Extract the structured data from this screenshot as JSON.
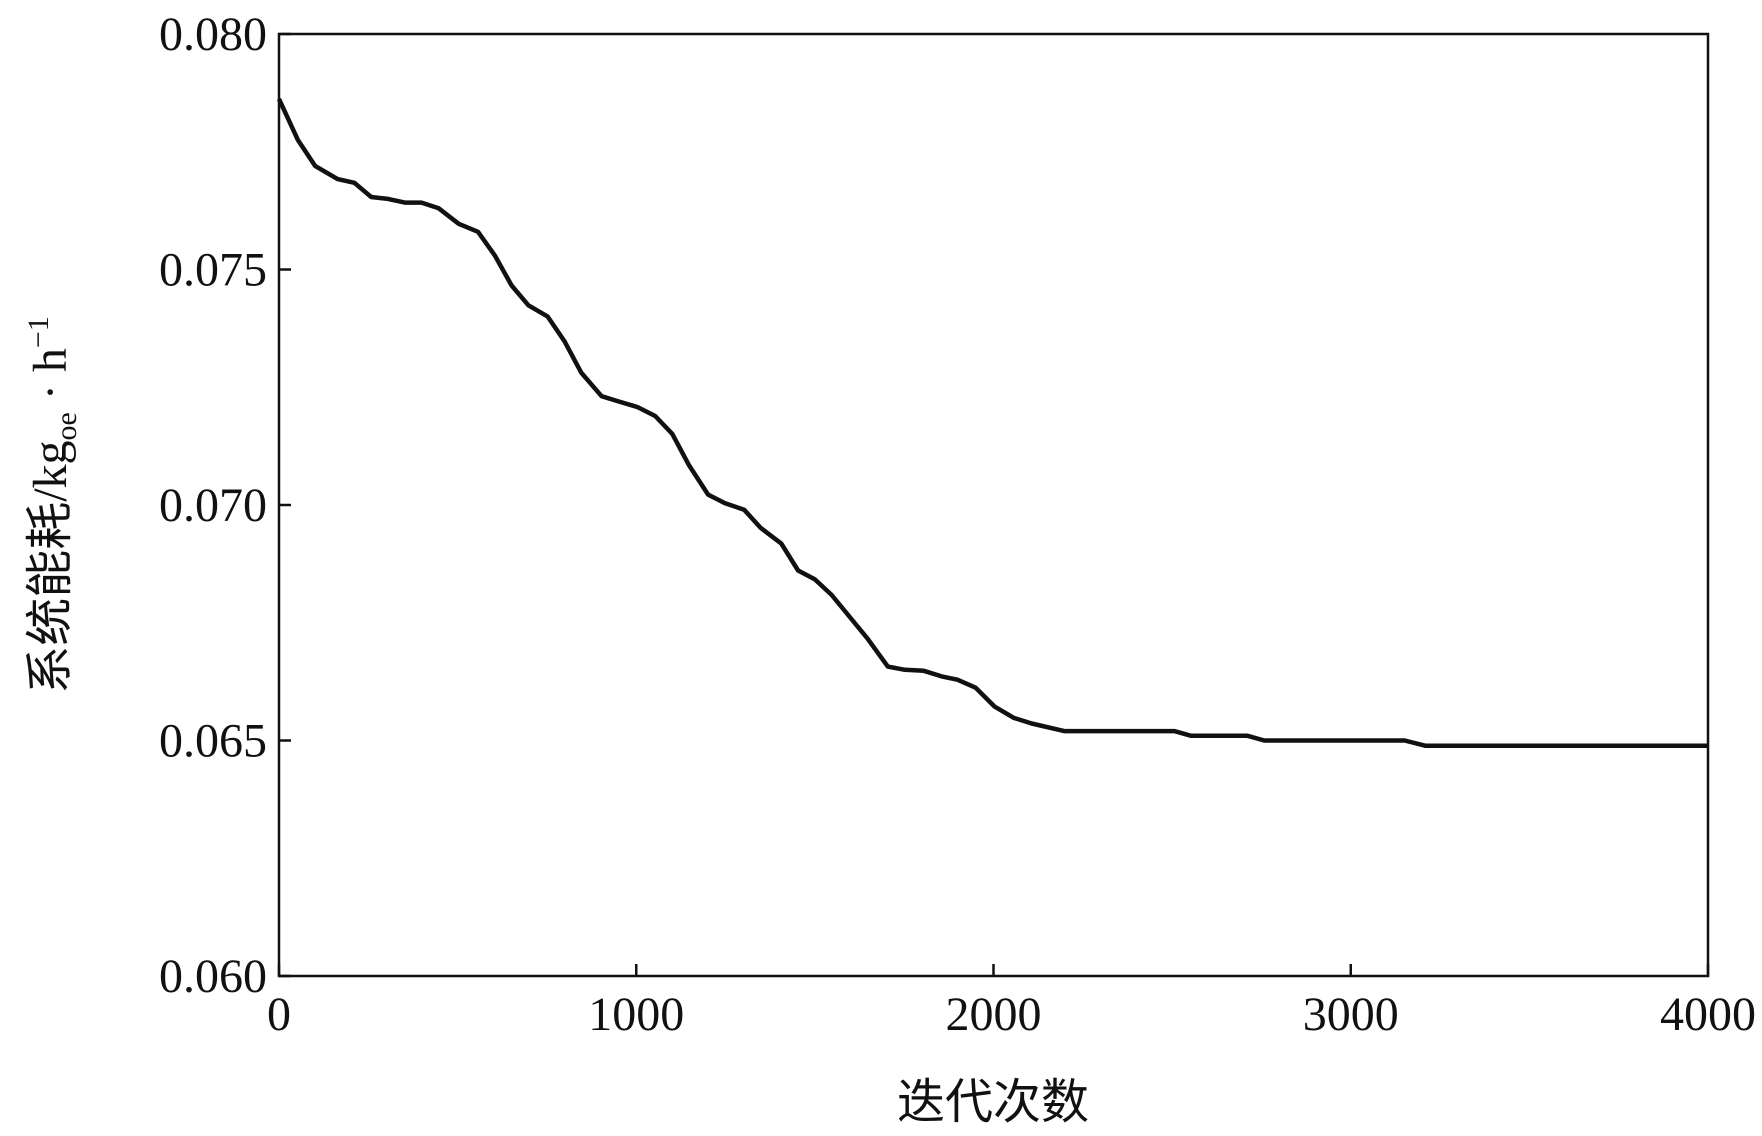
{
  "chart_data": {
    "type": "line",
    "xlabel": "迭代次数",
    "ylabel_parts": [
      "系统能耗/kg",
      "oe",
      " · h",
      "−1"
    ],
    "xlim": [
      0,
      4000
    ],
    "xticks": [
      0,
      1000,
      2000,
      3000,
      4000
    ],
    "ylim": [
      0.06,
      0.08
    ],
    "yticks": [
      {
        "value": 0.06,
        "label": "0.060"
      },
      {
        "value": 0.065,
        "label": "0.065"
      },
      {
        "value": 0.07,
        "label": "0.070"
      },
      {
        "value": 0.075,
        "label": "0.075"
      },
      {
        "value": 0.08,
        "label": "0.080"
      }
    ],
    "grid": false,
    "series": [
      {
        "color": "#111111",
        "x": [
          0,
          53,
          101,
          164,
          211,
          258,
          305,
          352,
          399,
          447,
          503,
          557,
          604,
          651,
          698,
          752,
          799,
          846,
          903,
          950,
          1003,
          1053,
          1101,
          1148,
          1201,
          1248,
          1302,
          1349,
          1406,
          1453,
          1500,
          1547,
          1601,
          1648,
          1704,
          1752,
          1805,
          1855,
          1899,
          1950,
          2003,
          2057,
          2107,
          2198,
          2506,
          2553,
          2711,
          2758,
          3151,
          3208,
          4000
        ],
        "values": [
          0.07862,
          0.07775,
          0.0772,
          0.07692,
          0.07684,
          0.07654,
          0.0765,
          0.07642,
          0.07642,
          0.0763,
          0.07597,
          0.0758,
          0.0753,
          0.07466,
          0.07424,
          0.074,
          0.07348,
          0.07281,
          0.07231,
          0.0722,
          0.07208,
          0.07189,
          0.07151,
          0.07084,
          0.07022,
          0.07004,
          0.0699,
          0.06951,
          0.06918,
          0.06861,
          0.06842,
          0.06809,
          0.06759,
          0.06716,
          0.06657,
          0.0665,
          0.06648,
          0.06636,
          0.06629,
          0.06612,
          0.06572,
          0.06548,
          0.06536,
          0.0652,
          0.0652,
          0.0651,
          0.0651,
          0.065,
          0.065,
          0.06489,
          0.06489
        ]
      }
    ]
  }
}
